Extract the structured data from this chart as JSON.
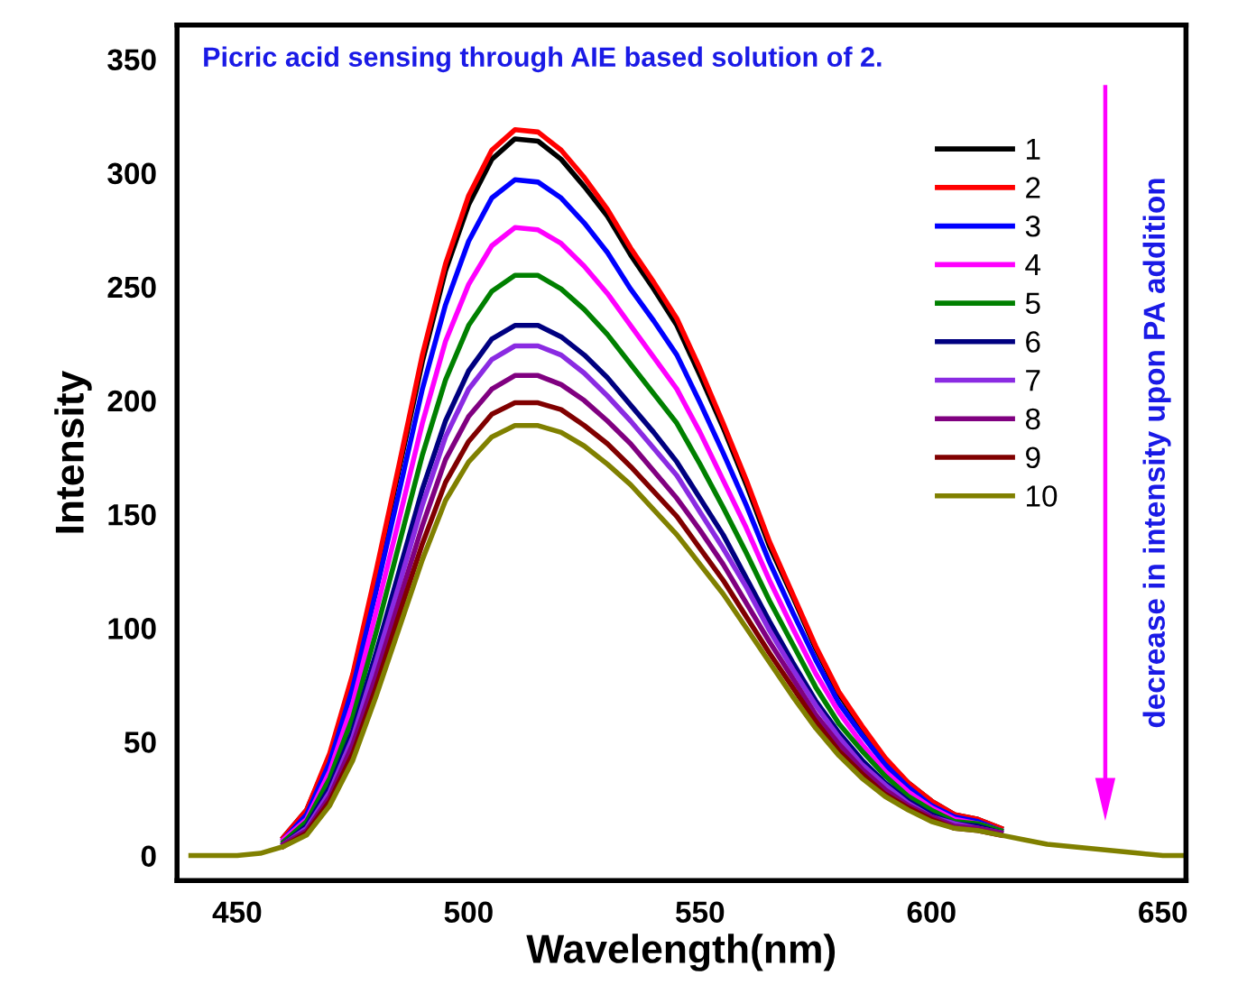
{
  "chart_data": {
    "type": "line",
    "title": "Picric acid sensing through AIE based solution of 2.",
    "xlabel": "Wavelength(nm)",
    "ylabel": "Intensity",
    "annotations": [
      "decrease in intensity upon PA addition"
    ],
    "x": [
      440,
      445,
      450,
      455,
      460,
      465,
      470,
      475,
      480,
      485,
      490,
      495,
      500,
      505,
      510,
      515,
      520,
      525,
      530,
      535,
      540,
      545,
      550,
      555,
      560,
      565,
      570,
      575,
      580,
      585,
      590,
      595,
      600,
      605,
      610,
      615,
      620,
      625,
      630,
      635,
      640,
      645,
      650,
      655
    ],
    "series": [
      {
        "name": "1",
        "color": "#000000",
        "values": [
          null,
          null,
          null,
          null,
          8,
          20,
          44,
          79,
          123,
          170,
          217,
          257,
          286,
          306,
          315,
          314,
          306,
          294,
          281,
          264,
          249,
          233,
          211,
          188,
          163,
          136,
          114,
          91,
          71,
          56,
          42,
          32,
          24,
          18,
          16,
          12,
          null,
          null,
          null,
          null,
          null,
          null,
          null,
          null
        ]
      },
      {
        "name": "2",
        "color": "#ff0000",
        "values": [
          null,
          null,
          null,
          null,
          8,
          20,
          45,
          80,
          125,
          172,
          220,
          260,
          290,
          310,
          319,
          318,
          310,
          298,
          284,
          267,
          252,
          236,
          214,
          190,
          165,
          138,
          115,
          92,
          72,
          57,
          43,
          32,
          24,
          18,
          16,
          12,
          null,
          null,
          null,
          null,
          null,
          null,
          null,
          null
        ]
      },
      {
        "name": "3",
        "color": "#0000ff",
        "values": [
          null,
          null,
          null,
          null,
          7,
          18,
          41,
          74,
          116,
          160,
          205,
          242,
          270,
          289,
          297,
          296,
          289,
          278,
          265,
          249,
          235,
          220,
          199,
          177,
          154,
          129,
          107,
          86,
          67,
          53,
          40,
          30,
          22,
          17,
          15,
          11,
          null,
          null,
          null,
          null,
          null,
          null,
          null,
          null
        ]
      },
      {
        "name": "4",
        "color": "#ff00ff",
        "values": [
          null,
          null,
          null,
          null,
          7,
          16,
          37,
          67,
          107,
          148,
          190,
          226,
          251,
          268,
          276,
          275,
          269,
          259,
          247,
          233,
          219,
          205,
          186,
          165,
          144,
          121,
          100,
          80,
          63,
          49,
          37,
          28,
          21,
          16,
          14,
          11,
          null,
          null,
          null,
          null,
          null,
          null,
          null,
          null
        ]
      },
      {
        "name": "5",
        "color": "#008000",
        "values": [
          null,
          null,
          null,
          null,
          6,
          15,
          34,
          61,
          98,
          137,
          176,
          209,
          233,
          248,
          255,
          255,
          249,
          240,
          229,
          216,
          203,
          190,
          172,
          153,
          133,
          112,
          93,
          74,
          58,
          46,
          35,
          26,
          20,
          15,
          14,
          11,
          null,
          null,
          null,
          null,
          null,
          null,
          null,
          null
        ]
      },
      {
        "name": "6",
        "color": "#000080",
        "values": [
          null,
          null,
          null,
          null,
          5,
          13,
          30,
          55,
          89,
          125,
          161,
          191,
          213,
          227,
          233,
          233,
          228,
          220,
          210,
          198,
          186,
          173,
          157,
          141,
          122,
          103,
          85,
          68,
          54,
          42,
          32,
          24,
          18,
          14,
          13,
          10,
          null,
          null,
          null,
          null,
          null,
          null,
          null,
          null
        ]
      },
      {
        "name": "7",
        "color": "#8a2be2",
        "values": [
          null,
          null,
          null,
          null,
          5,
          12,
          28,
          52,
          85,
          119,
          154,
          184,
          205,
          218,
          224,
          224,
          220,
          212,
          202,
          191,
          179,
          167,
          151,
          135,
          118,
          99,
          82,
          66,
          52,
          40,
          31,
          23,
          17,
          14,
          12,
          10,
          null,
          null,
          null,
          null,
          null,
          null,
          null,
          null
        ]
      },
      {
        "name": "8",
        "color": "#800080",
        "values": [
          null,
          null,
          null,
          null,
          5,
          11,
          26,
          49,
          79,
          112,
          145,
          174,
          193,
          205,
          211,
          211,
          207,
          200,
          191,
          181,
          169,
          157,
          143,
          128,
          111,
          94,
          78,
          62,
          49,
          38,
          29,
          22,
          17,
          13,
          12,
          10,
          null,
          null,
          null,
          null,
          null,
          null,
          null,
          null
        ]
      },
      {
        "name": "9",
        "color": "#800000",
        "values": [
          null,
          null,
          null,
          null,
          4,
          10,
          24,
          45,
          74,
          106,
          137,
          164,
          182,
          194,
          199,
          199,
          196,
          189,
          181,
          171,
          160,
          149,
          135,
          121,
          105,
          89,
          74,
          59,
          46,
          36,
          27,
          21,
          16,
          12,
          11,
          9,
          null,
          null,
          null,
          null,
          null,
          null,
          null,
          null
        ]
      },
      {
        "name": "10",
        "color": "#808000",
        "values": [
          0,
          0,
          0,
          1,
          4,
          9,
          22,
          42,
          70,
          100,
          130,
          156,
          173,
          184,
          189,
          189,
          186,
          180,
          172,
          163,
          152,
          141,
          128,
          115,
          100,
          85,
          70,
          56,
          44,
          34,
          26,
          20,
          15,
          12,
          11,
          9,
          7,
          5,
          4,
          3,
          2,
          1,
          0,
          0
        ]
      }
    ],
    "xlim": [
      437,
      655
    ],
    "ylim": [
      -11,
      365
    ],
    "xticks": [
      450,
      500,
      550,
      600,
      650
    ],
    "yticks": [
      0,
      50,
      100,
      150,
      200,
      250,
      300,
      350
    ],
    "grid": false,
    "legend": "top right",
    "marker": "none",
    "line_style": "solid"
  }
}
